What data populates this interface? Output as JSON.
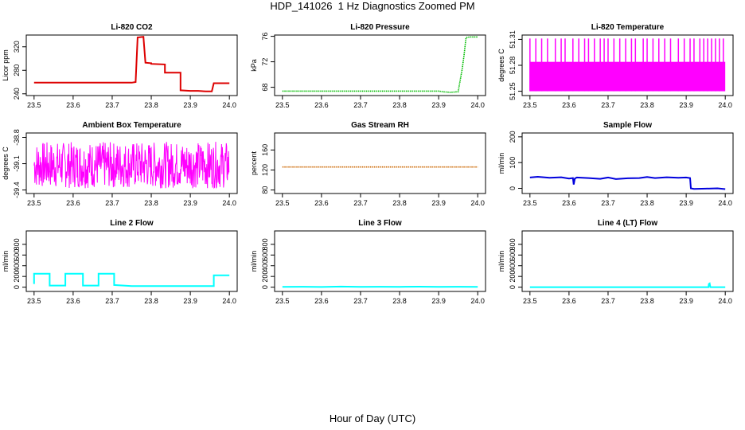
{
  "title": "HDP_141026  1 Hz Diagnostics Zoomed PM",
  "xlabel_common": "Hour of Day (UTC)",
  "chart_data": [
    {
      "type": "line",
      "title": "Li-820 CO2",
      "xlabel": "",
      "ylabel": "Licor ppm",
      "xlim": [
        23.48,
        24.02
      ],
      "ylim": [
        237,
        340
      ],
      "xticks": [
        "23.5",
        "23.6",
        "23.7",
        "23.8",
        "23.9",
        "24.0"
      ],
      "yticks": [
        "240",
        "280",
        "320"
      ],
      "color": "#dd0000",
      "render": "line",
      "series": [
        {
          "x": [
            23.5,
            23.75,
            23.76,
            23.765,
            23.78,
            23.785,
            23.8,
            23.8,
            23.835,
            23.835,
            23.875,
            23.875,
            23.9,
            23.92,
            23.94,
            23.955,
            23.96,
            24.0
          ],
          "y": [
            259,
            259,
            260,
            336,
            337,
            293,
            292,
            291,
            290,
            276,
            276,
            246,
            245,
            245,
            244,
            244,
            258,
            258
          ]
        }
      ]
    },
    {
      "type": "line",
      "title": "Li-820 Pressure",
      "xlabel": "",
      "ylabel": "kPa",
      "xlim": [
        23.48,
        24.02
      ],
      "ylim": [
        66.7,
        76.2
      ],
      "xticks": [
        "23.5",
        "23.6",
        "23.7",
        "23.8",
        "23.9",
        "24.0"
      ],
      "yticks": [
        "68",
        "72",
        "76"
      ],
      "color": "#00bb00",
      "render": "dotted",
      "series": [
        {
          "x": [
            23.5,
            23.6,
            23.7,
            23.8,
            23.9,
            23.91,
            23.93,
            23.95,
            23.96,
            23.965,
            23.97,
            23.98,
            24.0
          ],
          "y": [
            67.4,
            67.4,
            67.4,
            67.4,
            67.4,
            67.3,
            67.2,
            67.3,
            70.8,
            73.0,
            75.8,
            75.9,
            75.9
          ]
        }
      ]
    },
    {
      "type": "line",
      "title": "Li-820 Temperature",
      "xlabel": "",
      "ylabel": "degrees C",
      "xlim": [
        23.48,
        24.02
      ],
      "ylim": [
        51.245,
        51.315
      ],
      "xticks": [
        "23.5",
        "23.6",
        "23.7",
        "23.8",
        "23.9",
        "24.0"
      ],
      "yticks": [
        "51.25",
        "51.28",
        "51.31"
      ],
      "color": "#ff00ff",
      "render": "band",
      "band": {
        "low": 51.25,
        "high": 51.284,
        "spike": 51.311,
        "spike_x": [
          23.5,
          23.515,
          23.53,
          23.545,
          23.565,
          23.58,
          23.59,
          23.61,
          23.625,
          23.64,
          23.65,
          23.665,
          23.68,
          23.69,
          23.7,
          23.715,
          23.73,
          23.745,
          23.76,
          23.77,
          23.79,
          23.8,
          23.815,
          23.83,
          23.845,
          23.86,
          23.88,
          23.895,
          23.91,
          23.92,
          23.935,
          23.945,
          23.955,
          23.965,
          23.975,
          23.985,
          23.995
        ]
      }
    },
    {
      "type": "line",
      "title": "Ambient Box Temperature",
      "xlabel": "",
      "ylabel": "degrees C",
      "xlim": [
        23.48,
        24.02
      ],
      "ylim": [
        -39.44,
        -38.75
      ],
      "xticks": [
        "23.5",
        "23.6",
        "23.7",
        "23.8",
        "23.9",
        "24.0"
      ],
      "yticks": [
        "-39.4",
        "-39.1",
        "-38.8"
      ],
      "color": "#ff00ff",
      "render": "noise",
      "noise": {
        "center": -39.15,
        "low": -39.38,
        "high": -38.85,
        "step": 0.001
      }
    },
    {
      "type": "line",
      "title": "Gas Stream RH",
      "xlabel": "",
      "ylabel": "percent",
      "xlim": [
        23.48,
        24.02
      ],
      "ylim": [
        73,
        194
      ],
      "xticks": [
        "23.5",
        "23.6",
        "23.7",
        "23.8",
        "23.9",
        "24.0"
      ],
      "yticks": [
        "80",
        "120",
        "160"
      ],
      "color": "#cc6600",
      "render": "dotted",
      "series": [
        {
          "x": [
            23.5,
            24.0
          ],
          "y": [
            126,
            126
          ]
        }
      ]
    },
    {
      "type": "line",
      "title": "Sample Flow",
      "xlabel": "",
      "ylabel": "ml/min",
      "xlim": [
        23.48,
        24.02
      ],
      "ylim": [
        -20,
        215
      ],
      "xticks": [
        "23.5",
        "23.6",
        "23.7",
        "23.8",
        "23.9",
        "24.0"
      ],
      "yticks": [
        "0",
        "100",
        "200"
      ],
      "color": "#0000dd",
      "render": "line",
      "series": [
        {
          "x": [
            23.5,
            23.52,
            23.55,
            23.58,
            23.6,
            23.61,
            23.612,
            23.615,
            23.62,
            23.65,
            23.68,
            23.7,
            23.72,
            23.75,
            23.78,
            23.8,
            23.82,
            23.85,
            23.88,
            23.9,
            23.91,
            23.912,
            23.92,
            23.95,
            23.98,
            24.0
          ],
          "y": [
            42,
            45,
            41,
            43,
            38,
            40,
            15,
            38,
            42,
            40,
            37,
            42,
            36,
            39,
            40,
            44,
            40,
            43,
            41,
            42,
            40,
            0,
            -2,
            -1,
            0,
            -3
          ]
        }
      ]
    },
    {
      "type": "line",
      "title": "Line 2 Flow",
      "xlabel": "",
      "ylabel": "ml/min",
      "xlim": [
        23.48,
        24.02
      ],
      "ylim": [
        -80,
        1050
      ],
      "xticks": [
        "23.5",
        "23.6",
        "23.7",
        "23.8",
        "23.9",
        "24.0"
      ],
      "yticks": [
        "0",
        "200",
        "400",
        "600",
        "800"
      ],
      "color": "#00ffff",
      "render": "line",
      "series": [
        {
          "x": [
            23.5,
            23.5,
            23.54,
            23.54,
            23.58,
            23.58,
            23.625,
            23.625,
            23.665,
            23.665,
            23.705,
            23.705,
            23.75,
            23.96,
            23.96,
            24.0
          ],
          "y": [
            60,
            250,
            250,
            30,
            30,
            250,
            250,
            30,
            30,
            250,
            250,
            40,
            20,
            20,
            220,
            220
          ]
        }
      ]
    },
    {
      "type": "line",
      "title": "Line 3 Flow",
      "xlabel": "",
      "ylabel": "ml/min",
      "xlim": [
        23.48,
        24.02
      ],
      "ylim": [
        -80,
        1050
      ],
      "xticks": [
        "23.5",
        "23.6",
        "23.7",
        "23.8",
        "23.9",
        "24.0"
      ],
      "yticks": [
        "0",
        "200",
        "400",
        "600",
        "800"
      ],
      "color": "#00ffff",
      "render": "line",
      "series": [
        {
          "x": [
            23.5,
            23.55,
            23.6,
            23.65,
            23.7,
            23.75,
            23.8,
            23.85,
            23.9,
            23.95,
            24.0
          ],
          "y": [
            5,
            8,
            4,
            10,
            5,
            8,
            6,
            9,
            5,
            7,
            5
          ]
        }
      ]
    },
    {
      "type": "line",
      "title": "Line 4 (LT) Flow",
      "xlabel": "",
      "ylabel": "ml/min",
      "xlim": [
        23.48,
        24.02
      ],
      "ylim": [
        -80,
        1050
      ],
      "xticks": [
        "23.5",
        "23.6",
        "23.7",
        "23.8",
        "23.9",
        "24.0"
      ],
      "yticks": [
        "0",
        "200",
        "400",
        "600",
        "800"
      ],
      "color": "#00ffff",
      "render": "line",
      "series": [
        {
          "x": [
            23.5,
            23.957,
            23.958,
            23.96,
            23.962,
            24.0
          ],
          "y": [
            0,
            0,
            60,
            70,
            0,
            0
          ]
        }
      ]
    }
  ]
}
